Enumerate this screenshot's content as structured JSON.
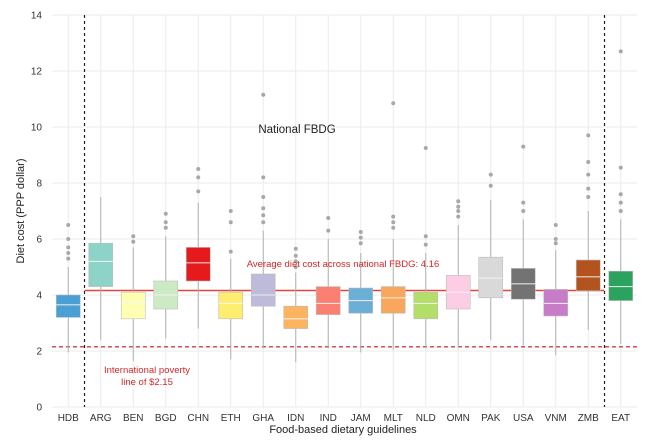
{
  "chart_data": {
    "type": "box",
    "xlabel": "Food-based dietary guidelines",
    "ylabel": "Diet cost (PPP dollar)",
    "ylim": [
      0,
      14
    ],
    "y_ticks": [
      0,
      2,
      4,
      6,
      8,
      10,
      12,
      14
    ],
    "grid": true,
    "section_label": "National FBDG",
    "reference_lines": [
      {
        "name": "average",
        "value": 4.16,
        "label": "Average diet cost across national FBDG: 4.16",
        "color": "#e0473f"
      },
      {
        "name": "poverty",
        "value": 2.15,
        "label_lines": [
          "International poverty",
          "line of $2.15"
        ],
        "color": "#c2181b"
      }
    ],
    "separators_after": [
      "HDB",
      "ZMB"
    ],
    "categories": [
      "HDB",
      "ARG",
      "BEN",
      "BGD",
      "CHN",
      "ETH",
      "GHA",
      "IDN",
      "IND",
      "JAM",
      "MLT",
      "NLD",
      "OMN",
      "PAK",
      "USA",
      "VNM",
      "ZMB",
      "EAT"
    ],
    "boxes": [
      {
        "q1": 3.2,
        "median": 3.65,
        "q3": 4.0,
        "lo": 1.95,
        "hi": 5.0,
        "outliers": [
          5.3,
          5.5,
          5.7,
          6.0,
          6.5
        ],
        "color": "#4a9fd4"
      },
      {
        "q1": 4.3,
        "median": 5.2,
        "q3": 5.85,
        "lo": 2.4,
        "hi": 7.5,
        "outliers": [],
        "color": "#8dd3c7"
      },
      {
        "q1": 3.15,
        "median": 3.7,
        "q3": 4.1,
        "lo": 1.65,
        "hi": 5.7,
        "outliers": [
          5.9,
          6.1
        ],
        "color": "#ffffb3"
      },
      {
        "q1": 3.5,
        "median": 4.0,
        "q3": 4.5,
        "lo": 2.45,
        "hi": 6.1,
        "outliers": [
          6.4,
          6.6,
          6.9
        ],
        "color": "#ccebc5"
      },
      {
        "q1": 4.5,
        "median": 5.15,
        "q3": 5.7,
        "lo": 2.8,
        "hi": 7.3,
        "outliers": [
          7.7,
          8.2,
          8.5
        ],
        "color": "#e41a1c"
      },
      {
        "q1": 3.15,
        "median": 3.7,
        "q3": 4.1,
        "lo": 1.7,
        "hi": 5.3,
        "outliers": [
          5.55,
          6.6,
          7.0
        ],
        "color": "#ffed6f"
      },
      {
        "q1": 3.6,
        "median": 4.0,
        "q3": 4.75,
        "lo": 2.1,
        "hi": 6.3,
        "outliers": [
          6.6,
          6.85,
          7.1,
          7.5,
          8.2,
          11.15
        ],
        "color": "#bebada"
      },
      {
        "q1": 2.8,
        "median": 3.15,
        "q3": 3.6,
        "lo": 1.6,
        "hi": 4.8,
        "outliers": [
          5.0,
          5.2,
          5.4,
          5.65
        ],
        "color": "#fdb462"
      },
      {
        "q1": 3.3,
        "median": 3.7,
        "q3": 4.3,
        "lo": 2.1,
        "hi": 6.0,
        "outliers": [
          6.3,
          6.75
        ],
        "color": "#fb8072"
      },
      {
        "q1": 3.35,
        "median": 3.8,
        "q3": 4.25,
        "lo": 1.95,
        "hi": 5.5,
        "outliers": [
          5.85,
          6.05,
          6.25
        ],
        "color": "#6baed6"
      },
      {
        "q1": 3.35,
        "median": 3.9,
        "q3": 4.3,
        "lo": 2.05,
        "hi": 6.0,
        "outliers": [
          6.4,
          6.6,
          6.8,
          10.85
        ],
        "color": "#f9a75c"
      },
      {
        "q1": 3.15,
        "median": 3.7,
        "q3": 4.1,
        "lo": 2.1,
        "hi": 5.5,
        "outliers": [
          5.8,
          6.1,
          9.25
        ],
        "color": "#b3de69"
      },
      {
        "q1": 3.5,
        "median": 4.1,
        "q3": 4.7,
        "lo": 2.1,
        "hi": 6.5,
        "outliers": [
          6.8,
          7.0,
          7.15,
          7.35
        ],
        "color": "#fccde5"
      },
      {
        "q1": 3.9,
        "median": 4.6,
        "q3": 5.35,
        "lo": 2.4,
        "hi": 7.4,
        "outliers": [
          7.9,
          8.3
        ],
        "color": "#d9d9d9"
      },
      {
        "q1": 3.85,
        "median": 4.4,
        "q3": 4.95,
        "lo": 2.2,
        "hi": 6.7,
        "outliers": [
          7.0,
          7.3,
          9.3
        ],
        "color": "#737373"
      },
      {
        "q1": 3.25,
        "median": 3.7,
        "q3": 4.2,
        "lo": 1.85,
        "hi": 5.6,
        "outliers": [
          5.85,
          6.0,
          6.5
        ],
        "color": "#c77cc7"
      },
      {
        "q1": 4.15,
        "median": 4.65,
        "q3": 5.25,
        "lo": 2.75,
        "hi": 7.0,
        "outliers": [
          7.5,
          7.8,
          8.3,
          8.75,
          9.7
        ],
        "color": "#b3541e"
      },
      {
        "q1": 3.8,
        "median": 4.3,
        "q3": 4.85,
        "lo": 2.25,
        "hi": 6.7,
        "outliers": [
          7.0,
          7.3,
          7.6,
          8.55,
          12.7
        ],
        "color": "#2ca25f"
      }
    ]
  }
}
